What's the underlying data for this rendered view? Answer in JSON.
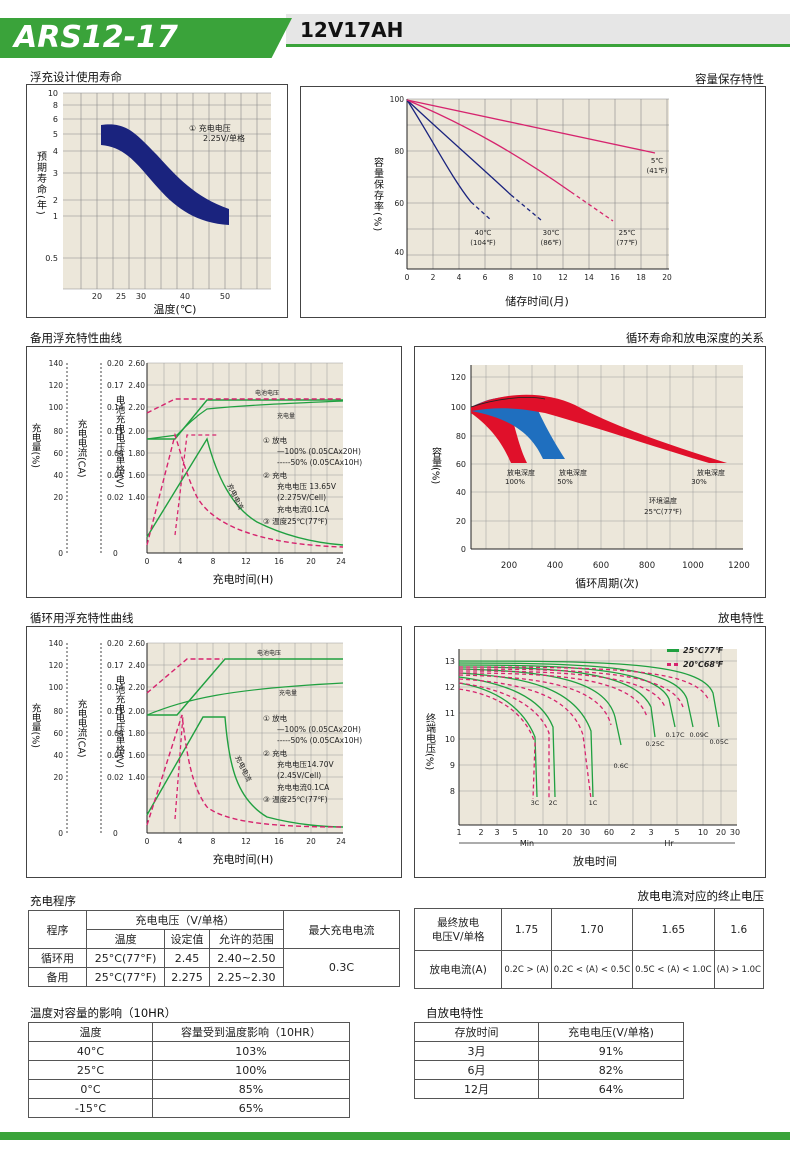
{
  "header": {
    "model": "ARS12-17",
    "spec": "12V17AH"
  },
  "sections": {
    "float_life": "浮充设计使用寿命",
    "capacity_retention": "容量保存特性",
    "standby_charge": "备用浮充特性曲线",
    "cycle_life": "循环寿命和放电深度的关系",
    "cycle_charge": "循环用浮充特性曲线",
    "discharge": "放电特性",
    "charge_procedure": "充电程序",
    "cutoff_voltage": "放电电流对应的终止电压",
    "temp_capacity": "温度对容量的影响（10HR）",
    "self_discharge": "自放电特性"
  },
  "float_life_chart": {
    "y_label": "预期寿命(年)",
    "x_label": "温度(℃)",
    "y_ticks": [
      "10",
      "8",
      "6",
      "5",
      "4",
      "3",
      "2",
      "1",
      "0.5"
    ],
    "x_ticks": [
      "20",
      "25",
      "30",
      "40",
      "50"
    ],
    "legend_l1": "① 充电电压",
    "legend_l2": "2.25V/单格"
  },
  "capacity_chart": {
    "y_label": "容量保存率(%)",
    "x_label": "储存时间(月)",
    "y_ticks": [
      "100",
      "80",
      "60",
      "40"
    ],
    "x_ticks": [
      "0",
      "2",
      "4",
      "6",
      "8",
      "10",
      "12",
      "14",
      "16",
      "18",
      "20"
    ],
    "labels": [
      {
        "t1": "40℃",
        "t2": "(104℉)"
      },
      {
        "t1": "30℃",
        "t2": "(86℉)"
      },
      {
        "t1": "25℃",
        "t2": "(77℉)"
      },
      {
        "t1": "5℃",
        "t2": "(41℉)"
      }
    ]
  },
  "standby_chart": {
    "ax1_label": "充电量(%)",
    "ax2_label": "充电电流(CA)",
    "ax3_label": "电池充电电压/单格(V)",
    "ax1_ticks": [
      "140",
      "120",
      "100",
      "80",
      "60",
      "40",
      "20",
      "0"
    ],
    "ax2_ticks": [
      "0.20",
      "0.17",
      "0.14",
      "0.11",
      "0.08",
      "0.05",
      "0.02",
      "0"
    ],
    "ax3_ticks": [
      "2.60",
      "2.40",
      "2.20",
      "2.00",
      "1.80",
      "1.60",
      "1.40"
    ],
    "x_ticks": [
      "0",
      "4",
      "8",
      "12",
      "16",
      "20",
      "24"
    ],
    "x_label": "充电时间(H)",
    "curve_voltage": "电池电压",
    "curve_charge": "充电量",
    "curve_current": "充电电流",
    "legend": [
      "① 放电",
      "—100% (0.05CAx20H)",
      "-----50% (0.05CAx10H)",
      "② 充电",
      "充电电压 13.65V",
      "(2.275V/Cell)",
      "充电电流0.1CA",
      "③ 温度25℃(77℉)"
    ]
  },
  "cycle_chart": {
    "y_label": "容量(%)",
    "x_label": "循环周期(次)",
    "y_ticks": [
      "120",
      "100",
      "80",
      "60",
      "40",
      "20",
      "0"
    ],
    "x_ticks": [
      "200",
      "400",
      "600",
      "800",
      "1000",
      "1200"
    ],
    "dod": [
      {
        "t1": "放电深度",
        "t2": "100%"
      },
      {
        "t1": "放电深度",
        "t2": "50%"
      },
      {
        "t1": "放电深度",
        "t2": "30%"
      }
    ],
    "env_l1": "环境温度",
    "env_l2": "25℃(77℉)"
  },
  "cycle_charge_chart": {
    "legend": [
      "① 放电",
      "—100% (0.05CAx20H)",
      "-----50% (0.05CAx10H)",
      "② 充电",
      "充电电压14.70V",
      "(2.45V/Cell)",
      "充电电流0.1CA",
      "③ 温度25℃(77℉)"
    ]
  },
  "discharge_chart": {
    "y_label": "终端电压(%)",
    "x_label": "放电时间",
    "y_ticks": [
      "13",
      "12",
      "11",
      "10",
      "9",
      "8"
    ],
    "x_ticks": [
      "1",
      "2",
      "3",
      "5",
      "10",
      "20",
      "30",
      "60",
      "2",
      "3",
      "5",
      "10",
      "20",
      "30"
    ],
    "min_label": "Min",
    "hr_label": "Hr",
    "legend_25": "25℃77℉",
    "legend_20": "20℃68℉",
    "rates": [
      "3C",
      "2C",
      "1C",
      "0.6C",
      "0.25C",
      "0.17C",
      "0.09C",
      "0.05C"
    ]
  },
  "charge_table": {
    "h_proc": "程序",
    "h_voltage": "充电电压（V/单格）",
    "h_max": "最大充电电流",
    "h_temp": "温度",
    "h_set": "设定值",
    "h_range": "允许的范围",
    "rows": [
      {
        "proc": "循环用",
        "temp": "25°C(77°F)",
        "set": "2.45",
        "range": "2.40~2.50"
      },
      {
        "proc": "备用",
        "temp": "25°C(77°F)",
        "set": "2.275",
        "range": "2.25~2.30"
      }
    ],
    "max": "0.3C"
  },
  "cutoff_table": {
    "h1": "最终放电",
    "h2": "电压V/单格",
    "volts": [
      "1.75",
      "1.70",
      "1.65",
      "1.6"
    ],
    "row_label": "放电电流(A)",
    "currents": [
      "0.2C > (A)",
      "0.2C < (A) < 0.5C",
      "0.5C < (A) < 1.0C",
      "(A) > 1.0C"
    ]
  },
  "temp_table": {
    "h1": "温度",
    "h2": "容量受到温度影响（10HR）",
    "rows": [
      {
        "t": "40°C",
        "v": "103%"
      },
      {
        "t": "25°C",
        "v": "100%"
      },
      {
        "t": "0°C",
        "v": "85%"
      },
      {
        "t": "-15°C",
        "v": "65%"
      }
    ]
  },
  "self_table": {
    "h1": "存放时间",
    "h2": "充电电压(V/单格)",
    "rows": [
      {
        "t": "3月",
        "v": "91%"
      },
      {
        "t": "6月",
        "v": "82%"
      },
      {
        "t": "12月",
        "v": "64%"
      }
    ]
  },
  "colors": {
    "green": "#3aa33a",
    "navy": "#1a237e",
    "magenta": "#d6246e",
    "red": "#e0102a",
    "blue": "#1f6fbf",
    "grid_bg": "#ece7da"
  }
}
